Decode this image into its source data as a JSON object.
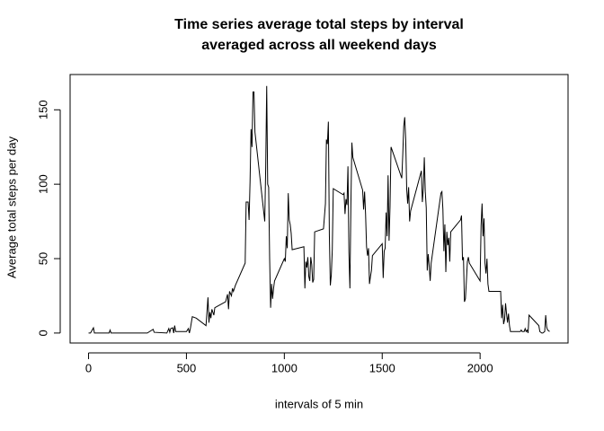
{
  "chart_data": {
    "type": "line",
    "title": [
      "Time series average total steps by interval",
      "averaged across all weekend days"
    ],
    "x_label": "intervals of 5 min",
    "y_label": "Average total steps per day",
    "x": [
      0,
      10,
      25,
      30,
      100,
      105,
      110,
      115,
      200,
      300,
      330,
      335,
      400,
      410,
      415,
      420,
      430,
      435,
      440,
      445,
      500,
      510,
      515,
      520,
      530,
      550,
      600,
      610,
      615,
      620,
      625,
      630,
      640,
      645,
      700,
      710,
      715,
      720,
      730,
      735,
      740,
      750,
      800,
      805,
      815,
      820,
      825,
      830,
      835,
      840,
      845,
      850,
      900,
      905,
      910,
      915,
      920,
      925,
      930,
      935,
      940,
      945,
      950,
      1000,
      1005,
      1010,
      1015,
      1020,
      1025,
      1030,
      1035,
      1040,
      1100,
      1105,
      1110,
      1115,
      1120,
      1125,
      1130,
      1135,
      1140,
      1145,
      1150,
      1155,
      1200,
      1210,
      1215,
      1220,
      1225,
      1230,
      1235,
      1240,
      1245,
      1250,
      1300,
      1305,
      1310,
      1315,
      1320,
      1325,
      1330,
      1335,
      1340,
      1345,
      1350,
      1400,
      1405,
      1410,
      1415,
      1420,
      1425,
      1430,
      1435,
      1440,
      1445,
      1450,
      1500,
      1505,
      1510,
      1515,
      1520,
      1525,
      1530,
      1535,
      1540,
      1545,
      1600,
      1605,
      1610,
      1615,
      1620,
      1625,
      1630,
      1635,
      1640,
      1645,
      1700,
      1705,
      1710,
      1715,
      1720,
      1725,
      1730,
      1735,
      1740,
      1745,
      1750,
      1800,
      1805,
      1810,
      1815,
      1820,
      1825,
      1830,
      1835,
      1840,
      1845,
      1850,
      1900,
      1905,
      1910,
      1915,
      1920,
      1925,
      1930,
      1935,
      1940,
      1945,
      2000,
      2005,
      2010,
      2015,
      2020,
      2025,
      2030,
      2035,
      2040,
      2045,
      2100,
      2105,
      2110,
      2115,
      2120,
      2125,
      2130,
      2135,
      2140,
      2145,
      2150,
      2155,
      2200,
      2205,
      2210,
      2215,
      2220,
      2225,
      2230,
      2235,
      2240,
      2245,
      2250,
      2300,
      2305,
      2315,
      2320,
      2330,
      2335,
      2340,
      2345,
      2355
    ],
    "series": [
      {
        "color": "#000000",
        "values": [
          0,
          0,
          3.5,
          0,
          0,
          0,
          2,
          0,
          0,
          0,
          2.5,
          0.5,
          0,
          3,
          0.5,
          3,
          3.5,
          0,
          5,
          1,
          1,
          3,
          0,
          3,
          11,
          10,
          5,
          24,
          7,
          14,
          10,
          16,
          12,
          17,
          21,
          26,
          16,
          28,
          25,
          30,
          28,
          32,
          47,
          88,
          88,
          76,
          102,
          137,
          125,
          162,
          162,
          135,
          75,
          112,
          166,
          100,
          98,
          50,
          17,
          33,
          23,
          30,
          35,
          50,
          48,
          65,
          57,
          94,
          76,
          73,
          67,
          56,
          58,
          30,
          48,
          44,
          51,
          38,
          35,
          51,
          46,
          34,
          36,
          68,
          70,
          87,
          130,
          127,
          142,
          66,
          32,
          39,
          56,
          97,
          93,
          94,
          80,
          90,
          86,
          112,
          54,
          30,
          86,
          128,
          118,
          96,
          83,
          95,
          80,
          58,
          52,
          57,
          33,
          38,
          42,
          52,
          60,
          37,
          55,
          57,
          81,
          65,
          106,
          62,
          85,
          125,
          104,
          120,
          139,
          145,
          130,
          97,
          87,
          98,
          75,
          82,
          109,
          88,
          97,
          118,
          95,
          84,
          42,
          53,
          45,
          35,
          47,
          94,
          95,
          83,
          55,
          73,
          41,
          68,
          59,
          64,
          48,
          68,
          76,
          79,
          49,
          51,
          21,
          23,
          35,
          48,
          51,
          47,
          35,
          72,
          87,
          65,
          77,
          47,
          40,
          50,
          33,
          28,
          28,
          28,
          10,
          19,
          6,
          9,
          20,
          13,
          7,
          13,
          5,
          1,
          1,
          1,
          2,
          1,
          1,
          1,
          3,
          1,
          2,
          0,
          12,
          5,
          1,
          0,
          0,
          1,
          12,
          4,
          2,
          1
        ]
      }
    ],
    "xlim": [
      -94.2,
      2449.2
    ],
    "ylim": [
      -6.7,
      173.7
    ],
    "xticks": [
      0,
      500,
      1000,
      1500,
      2000
    ],
    "yticks": [
      0,
      50,
      100,
      150
    ],
    "grid": false
  }
}
